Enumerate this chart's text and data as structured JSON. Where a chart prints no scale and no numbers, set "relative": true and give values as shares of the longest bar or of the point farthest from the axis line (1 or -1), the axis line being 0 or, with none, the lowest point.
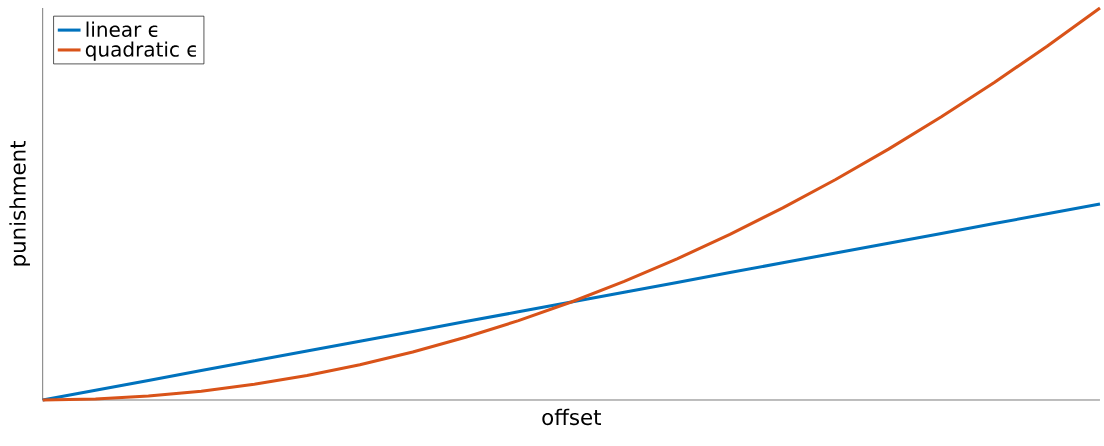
{
  "chart_data": {
    "type": "line",
    "xlabel": "offset",
    "ylabel": "punishment",
    "relative": true,
    "legend": "top left",
    "categories": [
      null,
      null,
      null,
      null,
      null,
      null,
      null,
      null,
      null,
      null,
      null,
      null,
      null,
      null,
      null,
      null,
      null,
      null,
      null,
      null,
      null
    ],
    "series": [
      {
        "name": "linear ϵ",
        "color": "#0072bd",
        "values": [
          0,
          0.025,
          0.05,
          0.075,
          0.1,
          0.125,
          0.15,
          0.175,
          0.2,
          0.225,
          0.25,
          0.275,
          0.3,
          0.325,
          0.35,
          0.375,
          0.4,
          0.425,
          0.45,
          0.475,
          0.5
        ]
      },
      {
        "name": "quadratic ϵ",
        "color": "#d95319",
        "values": [
          0,
          0.0025,
          0.01,
          0.0225,
          0.04,
          0.0625,
          0.09,
          0.1225,
          0.16,
          0.2025,
          0.25,
          0.3025,
          0.36,
          0.4225,
          0.49,
          0.5625,
          0.64,
          0.7225,
          0.81,
          0.9025,
          1
        ]
      }
    ]
  }
}
